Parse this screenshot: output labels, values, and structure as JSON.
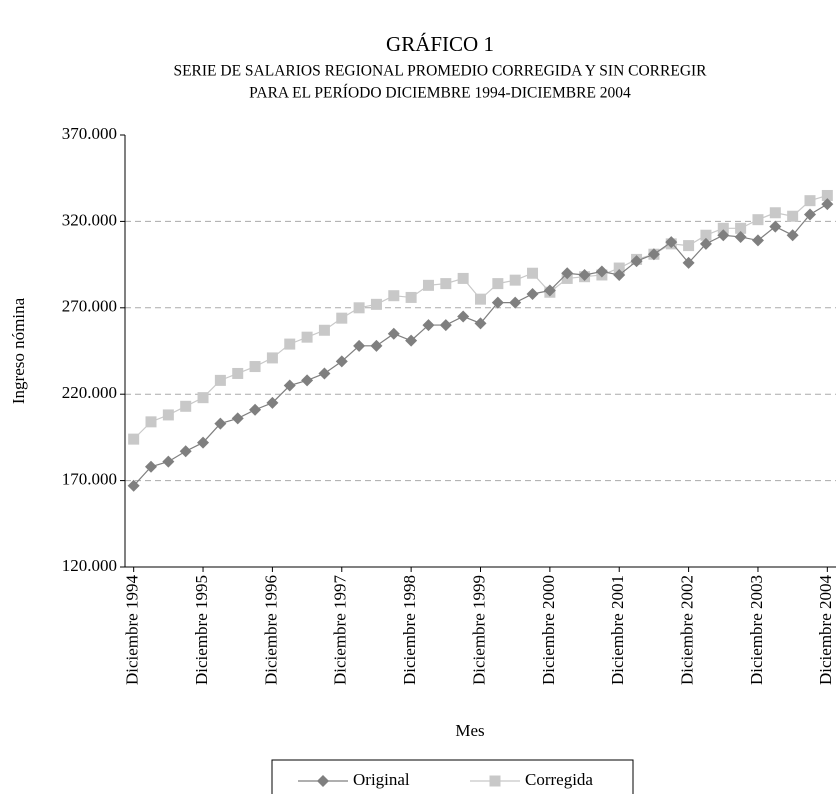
{
  "chart_data": {
    "type": "line",
    "title": "GRÁFICO 1",
    "subtitle": [
      "SERIE DE SALARIOS REGIONAL PROMEDIO CORREGIDA Y SIN CORREGIR",
      "PARA EL PERÍODO DICIEMBRE 1994-DICIEMBRE 2004"
    ],
    "x_label": "Mes",
    "y_label": "Ingreso nómina",
    "categories": [
      "Diciembre 1994",
      null,
      null,
      null,
      "Diciembre 1995",
      null,
      null,
      null,
      "Diciembre 1996",
      null,
      null,
      null,
      "Diciembre 1997",
      null,
      null,
      null,
      "Diciembre 1998",
      null,
      null,
      null,
      "Diciembre 1999",
      null,
      null,
      null,
      "Diciembre 2000",
      null,
      null,
      null,
      "Diciembre 2001",
      null,
      null,
      null,
      "Diciembre 2002",
      null,
      null,
      null,
      "Diciembre 2003",
      null,
      null,
      null,
      "Diciembre 2004"
    ],
    "series": [
      {
        "name": "Original",
        "color": "#7f7f7f",
        "marker": "diamond",
        "values": [
          167000,
          178000,
          181000,
          187000,
          192000,
          203000,
          206000,
          211000,
          215000,
          225000,
          228000,
          232000,
          239000,
          248000,
          248000,
          255000,
          251000,
          260000,
          260000,
          265000,
          261000,
          273000,
          273000,
          278000,
          280000,
          290000,
          289000,
          291000,
          289000,
          297000,
          301000,
          308000,
          296000,
          307000,
          312000,
          311000,
          309000,
          317000,
          312000,
          324000,
          330000
        ]
      },
      {
        "name": "Corregida",
        "color": "#c8c8c8",
        "marker": "square",
        "values": [
          194000,
          204000,
          208000,
          213000,
          218000,
          228000,
          232000,
          236000,
          241000,
          249000,
          253000,
          257000,
          264000,
          270000,
          272000,
          277000,
          276000,
          283000,
          284000,
          287000,
          275000,
          284000,
          286000,
          290000,
          279000,
          287000,
          288000,
          289000,
          293000,
          298000,
          301000,
          307000,
          306000,
          312000,
          316000,
          316000,
          321000,
          325000,
          323000,
          332000,
          335000
        ]
      }
    ],
    "ylim": [
      120000,
      370000
    ],
    "yticks": [
      {
        "value": 120000,
        "label": "120.000"
      },
      {
        "value": 170000,
        "label": "170.000"
      },
      {
        "value": 220000,
        "label": "220.000"
      },
      {
        "value": 270000,
        "label": "270.000"
      },
      {
        "value": 320000,
        "label": "320.000"
      },
      {
        "value": 370000,
        "label": "370.000"
      }
    ],
    "grid": true,
    "legend": "bottom"
  }
}
